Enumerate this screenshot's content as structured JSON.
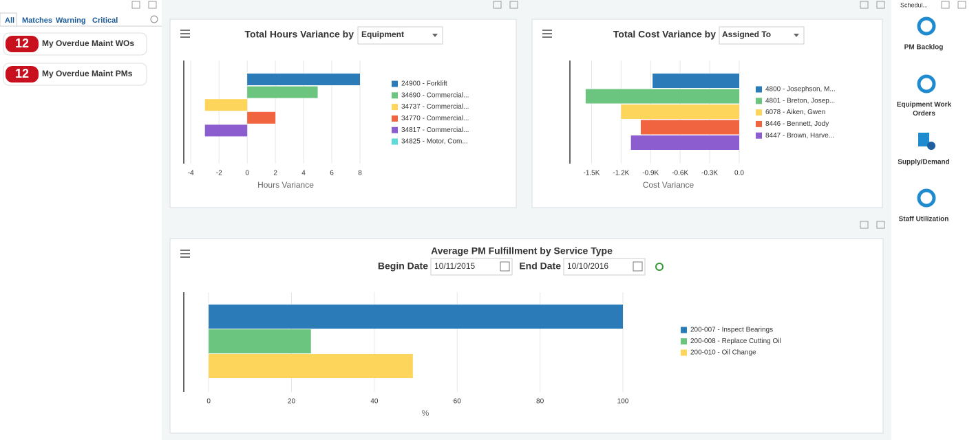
{
  "tabs": [
    "All",
    "Matches",
    "Warning",
    "Critical"
  ],
  "alerts": [
    {
      "count": "12",
      "label": "My Overdue Maint WOs"
    },
    {
      "count": "12",
      "label": "My Overdue Maint PMs"
    }
  ],
  "top_label": "Schedul...",
  "side_menu": [
    "PM Backlog",
    "Equipment Work Orders",
    "Supply/Demand",
    "Staff Utilization"
  ],
  "chart_data": [
    {
      "type": "bar",
      "orientation": "horizontal",
      "title": "Total Hours Variance by",
      "filter": "Equipment",
      "categories": [
        "24900 - Forklift",
        "34690 - Commercial...",
        "34737 - Commercial...",
        "34770 - Commercial...",
        "34817 - Commercial...",
        "34825 - Motor, Com..."
      ],
      "values": [
        8,
        5,
        -3,
        2,
        -3,
        0
      ],
      "colors": [
        "#2b7bb9",
        "#6cc57e",
        "#fdd55b",
        "#f0643f",
        "#8b5dcf",
        "#5fd8d8"
      ],
      "xlim": [
        -4.5,
        8
      ],
      "xticks": [
        -4,
        -2,
        0,
        2,
        4,
        6,
        8
      ],
      "xlabel": "Hours Variance",
      "grid": true
    },
    {
      "type": "bar",
      "orientation": "horizontal",
      "title": "Total Cost Variance by",
      "filter": "Assigned To",
      "categories": [
        "4800 - Josephson, M...",
        "4801 - Breton, Josep...",
        "6078 - Aiken, Gwen",
        "8446 - Bennett, Jody",
        "8447 - Brown, Harve..."
      ],
      "values": [
        -880,
        -1560,
        -1200,
        -1000,
        -1100
      ],
      "colors": [
        "#2b7bb9",
        "#6cc57e",
        "#fdd55b",
        "#f0643f",
        "#8b5dcf"
      ],
      "xlim": [
        -1720,
        0
      ],
      "xticks": [
        {
          "value": -1500,
          "label": "-1.5K"
        },
        {
          "value": -1200,
          "label": "-1.2K"
        },
        {
          "value": -900,
          "label": "-0.9K"
        },
        {
          "value": -600,
          "label": "-0.6K"
        },
        {
          "value": -300,
          "label": "-0.3K"
        },
        {
          "value": 0,
          "label": "0.0"
        }
      ],
      "xlabel": "Cost Variance",
      "grid": true
    },
    {
      "type": "bar",
      "orientation": "horizontal",
      "title": "Average PM Fulfillment by Service Type",
      "begin_date_label": "Begin Date",
      "begin_date": "10/11/2015",
      "end_date_label": "End Date",
      "end_date": "10/10/2016",
      "categories": [
        "200-007 - Inspect Bearings",
        "200-008 - Replace Cutting Oil",
        "200-010 - Oil Change"
      ],
      "values": [
        100,
        24.7,
        49.3
      ],
      "colors": [
        "#2b7bb9",
        "#6cc57e",
        "#fdd55b"
      ],
      "xlim": [
        -6,
        100
      ],
      "xticks": [
        0,
        20,
        40,
        60,
        80,
        100
      ],
      "xlabel": "%",
      "grid": true
    }
  ]
}
